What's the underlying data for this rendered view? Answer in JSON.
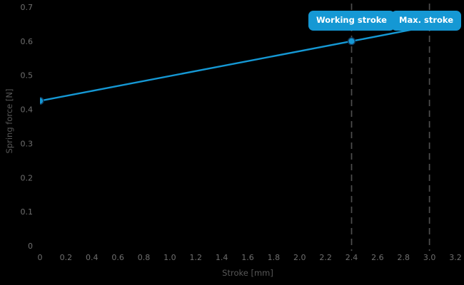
{
  "chart_data": {
    "type": "line",
    "title": "",
    "xlabel": "Stroke [mm]",
    "ylabel": "Spring force [N]",
    "xlim": [
      0,
      3.2
    ],
    "ylim": [
      0,
      0.7
    ],
    "xticks": [
      0,
      0.2,
      0.4,
      0.6,
      0.8,
      1.0,
      1.2,
      1.4,
      1.6,
      1.8,
      2.0,
      2.2,
      2.4,
      2.6,
      2.8,
      3.0,
      3.2
    ],
    "xtick_labels": [
      "0",
      "0.2",
      "0.4",
      "0.6",
      "0.8",
      "1.0",
      "1.2",
      "1.4",
      "1.6",
      "1.8",
      "2.0",
      "2.2",
      "2.4",
      "2.6",
      "2.8",
      "3.0",
      "3.2"
    ],
    "yticks": [
      0,
      0.1,
      0.2,
      0.3,
      0.4,
      0.5,
      0.6,
      0.7
    ],
    "ytick_labels": [
      "0",
      "0.1",
      "0.2",
      "0.3",
      "0.4",
      "0.5",
      "0.6",
      "0.7"
    ],
    "grid": false,
    "legend": "none",
    "series": [
      {
        "x": [
          0,
          2.4,
          3.0
        ],
        "y": [
          0.425,
          0.6,
          0.644
        ],
        "marker": "circle",
        "color": "#1598d4"
      }
    ],
    "annotations": [
      {
        "label": "Working stroke",
        "x": 2.4,
        "line_style": "dashed"
      },
      {
        "label": "Max. stroke",
        "x": 3.0,
        "line_style": "dashed"
      }
    ]
  },
  "colors": {
    "background": "#000000",
    "line": "#1598d4",
    "marker_fill": "#1598d4",
    "marker_edge": "#123a5d",
    "dashed_line": "#4d4d4d",
    "tick_text": "#6f6f6f",
    "axis_label_text": "#575757",
    "annotation_bg": "#1598d4",
    "annotation_text": "#ffffff"
  }
}
